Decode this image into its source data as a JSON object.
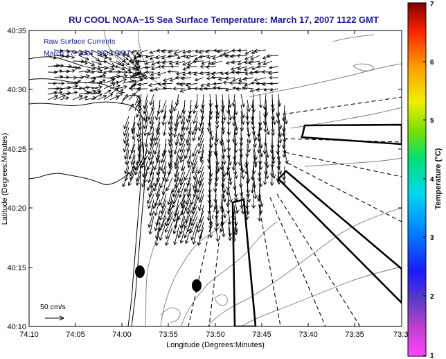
{
  "title": "RU COOL  NOAA−15  Sea Surface Temperature:  March 17, 2007 1122 GMT",
  "inset": {
    "line1": "Raw Surface Currents",
    "line2": "March 17, 2007 1000 GMT"
  },
  "axes": {
    "xlabel": "Longitude (Degrees:Minutes)",
    "ylabel": "Latitude (Degrees:Minutes)",
    "x_ticks": [
      "74:10",
      "74:05",
      "74:00",
      "73:55",
      "73:50",
      "73:45",
      "73:40",
      "73:35",
      "73:3"
    ],
    "y_ticks": [
      "40:35",
      "40:30",
      "40:25",
      "40:20",
      "40:15",
      "40:10"
    ]
  },
  "scale": {
    "label": "50 cm/s"
  },
  "colorbar": {
    "label": "Temperature (°C)",
    "ticks": [
      "7",
      "6",
      "5",
      "4",
      "3",
      "2",
      "1"
    ],
    "min": 1,
    "max": 7
  },
  "colors": {
    "title": "#1a1aa8",
    "land_contour": "#000000",
    "bathymetry": "#7a7a7a",
    "vectors": "#000000"
  }
}
